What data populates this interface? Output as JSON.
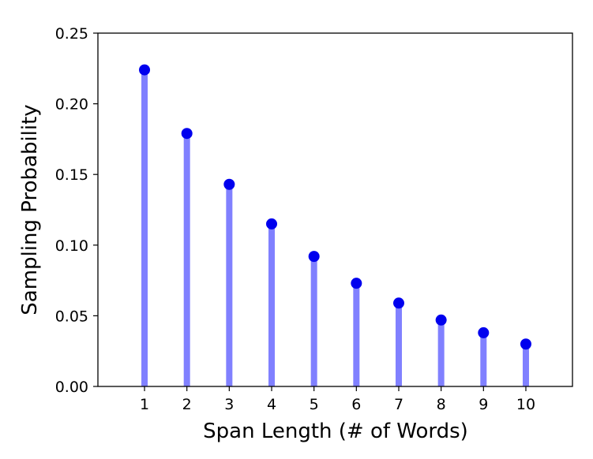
{
  "chart_data": {
    "type": "stem",
    "title": "",
    "xlabel": "Span Length (# of Words)",
    "ylabel": "Sampling Probability",
    "x": [
      1,
      2,
      3,
      4,
      5,
      6,
      7,
      8,
      9,
      10
    ],
    "y": [
      0.224,
      0.179,
      0.143,
      0.115,
      0.092,
      0.073,
      0.059,
      0.047,
      0.038,
      0.03
    ],
    "xlim": [
      -0.1,
      11.1
    ],
    "ylim": [
      0,
      0.25
    ],
    "xticks": [
      "1",
      "2",
      "3",
      "4",
      "5",
      "6",
      "7",
      "8",
      "9",
      "10"
    ],
    "yticks": [
      "0.00",
      "0.05",
      "0.10",
      "0.15",
      "0.20",
      "0.25"
    ],
    "grid": false,
    "legend": "none",
    "colors": {
      "stem": "#8080ff",
      "marker": "#0000ee",
      "axis": "#000000"
    }
  }
}
